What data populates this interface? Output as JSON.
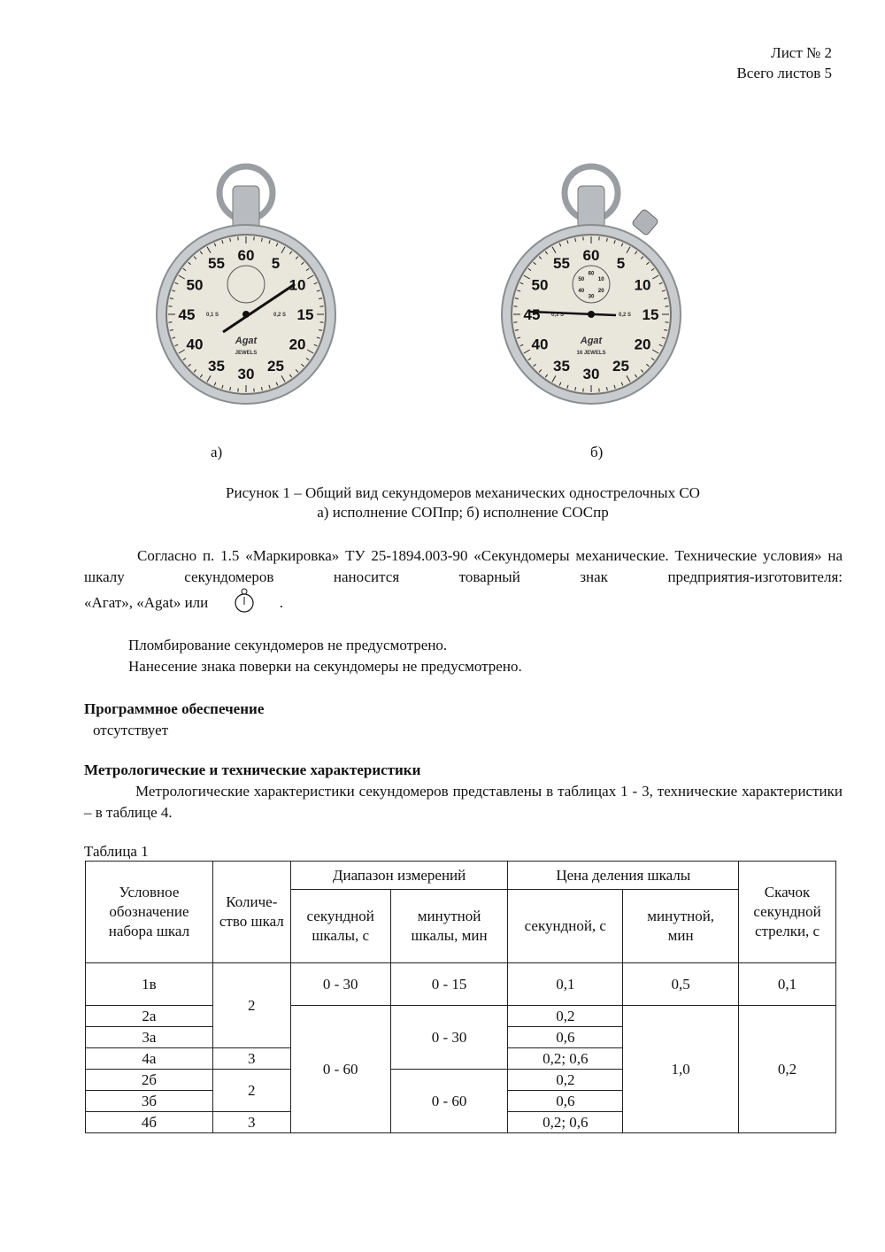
{
  "header": {
    "sheet": "Лист № 2",
    "total": "Всего листов 5"
  },
  "figure": {
    "watch_a": {
      "label": "а)",
      "dial_numbers": [
        "60",
        "5",
        "10",
        "15",
        "20",
        "25",
        "30",
        "35",
        "40",
        "45",
        "50",
        "55"
      ],
      "brand": "Agat",
      "jewels": "JEWELS",
      "left_mark": "0,1 S",
      "right_mark": "0,2 S"
    },
    "watch_b": {
      "label": "б)",
      "dial_numbers": [
        "60",
        "5",
        "10",
        "15",
        "20",
        "25",
        "30",
        "35",
        "40",
        "45",
        "50",
        "55"
      ],
      "sub_numbers": [
        "60",
        "10",
        "20",
        "30",
        "40",
        "50"
      ],
      "brand": "Agat",
      "jewels": "16 JEWELS",
      "left_mark": "0,1 S",
      "right_mark": "0,2 S"
    },
    "caption_line1": "Рисунок 1 – Общий вид секундомеров механических однострелочных СО",
    "caption_line2": "а) исполнение СОПпр;  б) исполнение СОСпр"
  },
  "para1": "Согласно п. 1.5 «Маркировка» ТУ 25-1894.003-90 «Секундомеры механические. Технические условия» на шкалу секундомеров наносится товарный знак предприятия-изготовителя:",
  "para1_tail": "«Агат», «Agat» или",
  "para1_end": ".",
  "sealing": "Пломбирование секундомеров не предусмотрено.",
  "verification": "Нанесение знака поверки на секундомеры не предусмотрено.",
  "software": {
    "heading": "Программное обеспечение",
    "value": "отсутствует"
  },
  "metro": {
    "heading": "Метрологические и технические характеристики",
    "text": "Метрологические характеристики секундомеров представлены в таблицах 1 - 3, технические характеристики – в таблице 4."
  },
  "table": {
    "caption": "Таблица 1",
    "h": {
      "designation": "Условное обозначение набора шкал",
      "count": "Количе-ство шкал",
      "range": "Диапазон измерений",
      "range_sec": "секундной шкалы,  с",
      "range_min": "минутной шкалы,  мин",
      "div": "Цена деления шкалы",
      "div_sec": "секундной,  с",
      "div_min": "минутной, мин",
      "jump": "Скачок секундной стрелки, с"
    },
    "rows": {
      "d": [
        "1в",
        "2а",
        "3а",
        "4а",
        "2б",
        "3б",
        "4б"
      ],
      "count": [
        "2",
        "3",
        "2",
        "3"
      ],
      "range_sec": [
        "0 - 30",
        "0 - 60"
      ],
      "range_min": [
        "0 - 15",
        "0 - 30",
        "0 - 60"
      ],
      "div_sec": [
        "0,1",
        "0,2",
        "0,6",
        "0,2; 0,6",
        "0,2",
        "0,6",
        "0,2; 0,6"
      ],
      "div_min": [
        "0,5",
        "1,0"
      ],
      "jump": [
        "0,1",
        "0,2"
      ]
    }
  }
}
